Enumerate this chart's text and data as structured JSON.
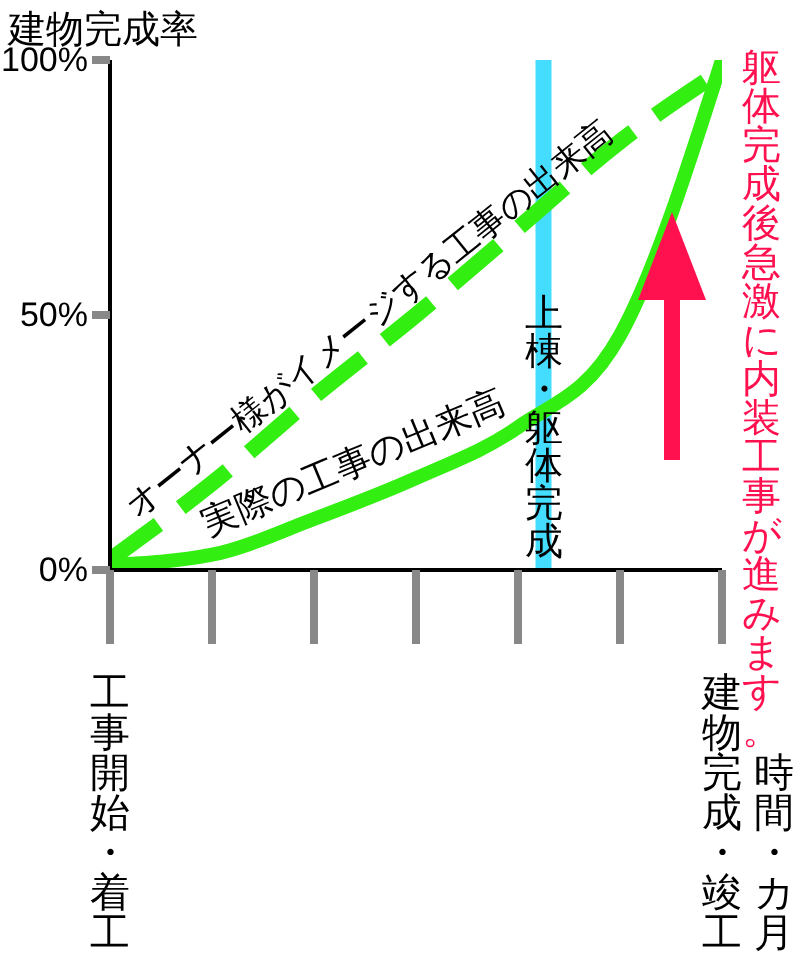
{
  "chart_data": {
    "type": "line",
    "ylabel": "建物完成率",
    "xlabel": "時間・カ月",
    "categories": [
      "工事開始・着工",
      null,
      null,
      null,
      null,
      null,
      "建物完成・竣工"
    ],
    "ylim": [
      0,
      100
    ],
    "yticks": [
      {
        "value": 0,
        "label": "0%"
      },
      {
        "value": 50,
        "label": "50%"
      },
      {
        "value": 100,
        "label": "100%"
      }
    ],
    "series": [
      {
        "name": "オーナー様がイメージする工事の出来高",
        "color": "#33ee11",
        "line_style": "dashed",
        "values": [
          2,
          17,
          34,
          50,
          67,
          84,
          98
        ]
      },
      {
        "name": "実際の工事の出来高",
        "color": "#33ee11",
        "line_style": "solid",
        "values": [
          1,
          3,
          10,
          18,
          28,
          46,
          100
        ]
      }
    ],
    "annotations": [
      "上棟・躯体完成",
      "躯体完成後急激に内装工事が進みます。"
    ],
    "marker": "none",
    "grid": false,
    "legend": false
  }
}
